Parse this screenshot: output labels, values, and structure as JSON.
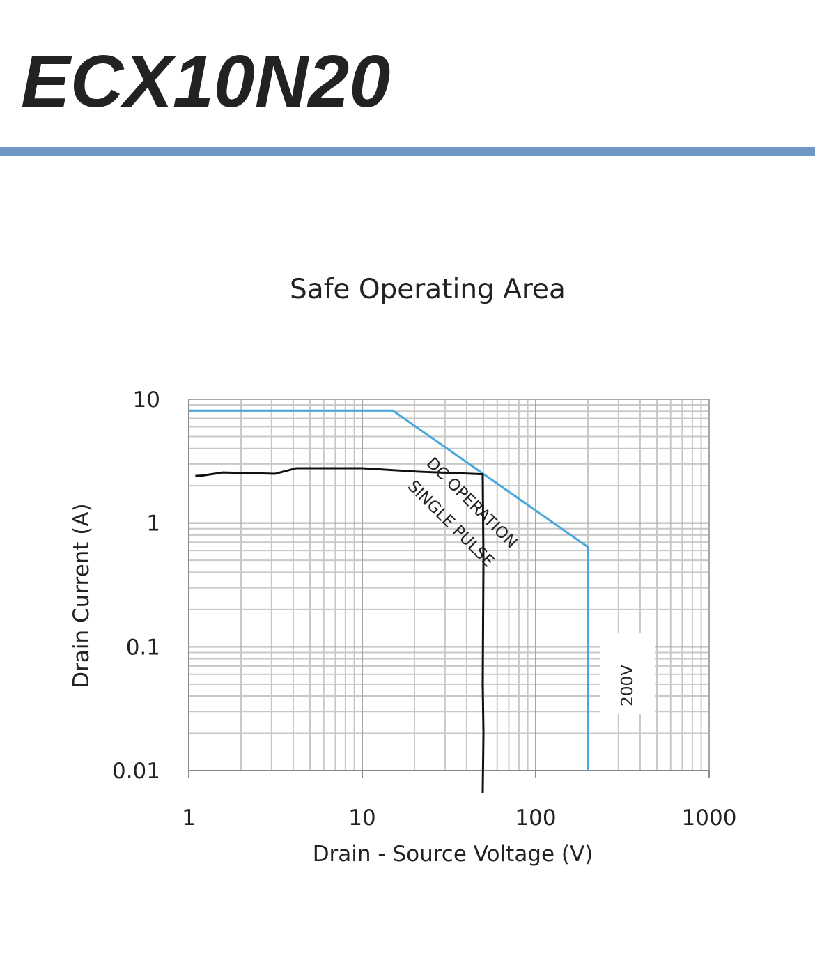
{
  "header": {
    "title": "ECX10N20"
  },
  "chart_data": {
    "type": "line",
    "title": "Safe Operating Area",
    "x_label": "Drain - Source Voltage (V)",
    "y_label": "Drain Current  (A)",
    "xlog": true,
    "ylog": true,
    "grid": true,
    "minor_grid": true,
    "xlim": [
      1,
      1000
    ],
    "ylim": [
      0.01,
      10
    ],
    "xticks": [
      1,
      10,
      100,
      1000
    ],
    "yticks": [
      0.01,
      0.1,
      1,
      10
    ],
    "series": [
      {
        "color": "#4aa6dc",
        "x": [
          1,
          15,
          200,
          200
        ],
        "values": [
          8.1,
          8.1,
          0.64,
          0.01
        ]
      },
      {
        "color": "#111111",
        "x": [
          1.09,
          1.2,
          1.57,
          3.15,
          4.15,
          10,
          21,
          49.5,
          50,
          49.5,
          50,
          49.5
        ],
        "values": [
          2.4,
          2.42,
          2.56,
          2.5,
          2.77,
          2.77,
          2.6,
          2.48,
          0.5,
          0.05,
          0.02,
          0.0066
        ]
      }
    ],
    "annotations": [
      "DC OPERATION",
      "SINGLE PULSE",
      "200V"
    ]
  }
}
